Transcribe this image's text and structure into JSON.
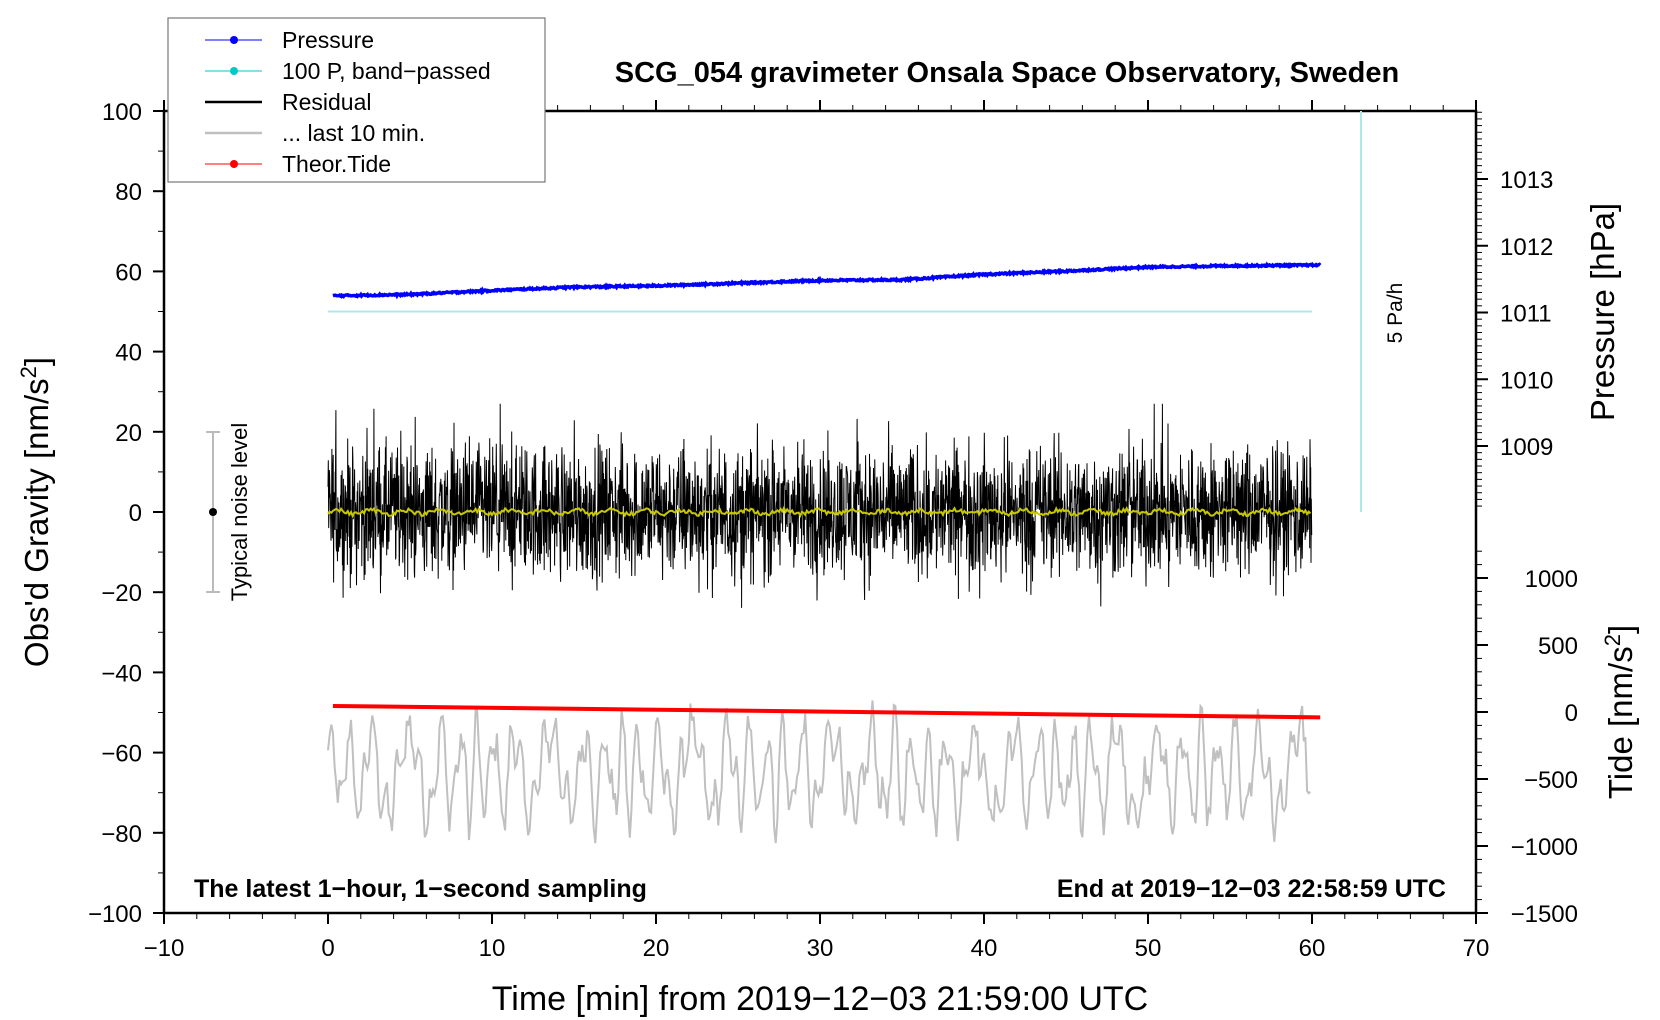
{
  "chart_data": {
    "type": "line",
    "title": "SCG_054 gravimeter Onsala Space Observatory, Sweden",
    "xlabel": "Time [min] from 2019−12−03 21:59:00 UTC",
    "ylabel": "Obs'd Gravity [nm/s",
    "ylabel_sup": "2",
    "ylabel_end": "]",
    "y2label": "Pressure [hPa]",
    "y3label": "Tide [nm/s",
    "y3label_sup": "2",
    "y3label_end": "]",
    "xlim": [
      -10,
      70
    ],
    "ylim": [
      -100,
      100
    ],
    "xticks": [
      "−10",
      "0",
      "10",
      "20",
      "30",
      "40",
      "50",
      "60",
      "70"
    ],
    "xtick_values": [
      -10,
      0,
      10,
      20,
      30,
      40,
      50,
      60,
      70
    ],
    "yticks": [
      "100",
      "80",
      "60",
      "40",
      "20",
      "0",
      "−20",
      "−40",
      "−60",
      "−80",
      "−100"
    ],
    "ytick_values": [
      100,
      80,
      60,
      40,
      20,
      0,
      -20,
      -40,
      -60,
      -80,
      -100
    ],
    "pressure_ticks": [
      "1013",
      "1012",
      "1011",
      "1010",
      "1009"
    ],
    "pressure_tick_values": [
      1013,
      1012,
      1011,
      1010,
      1009
    ],
    "tide_ticks": [
      "1000",
      "500",
      "0",
      "−500",
      "−1000",
      "−1500"
    ],
    "tide_tick_values": [
      1000,
      500,
      0,
      -500,
      -1000,
      -1500
    ],
    "legend": [
      {
        "label": "Pressure",
        "color": "#0000ff",
        "marker": true
      },
      {
        "label": "100 P, band−passed",
        "color": "#00c8c8",
        "marker": true
      },
      {
        "label": "Residual",
        "color": "#000000",
        "marker": false
      },
      {
        "label": "... last 10 min.",
        "color": "#c0c0c0",
        "marker": false
      },
      {
        "label": "Theor.Tide",
        "color": "#ff0000",
        "marker": true
      }
    ],
    "legend_position": "top-left",
    "series": [
      {
        "name": "Pressure",
        "unit": "hPa",
        "color": "#0000ff",
        "x": [
          0.3,
          5,
          10,
          15,
          20,
          25,
          30,
          35,
          40,
          45,
          50,
          55,
          60.5
        ],
        "values": [
          1011.25,
          1011.27,
          1011.33,
          1011.38,
          1011.4,
          1011.44,
          1011.48,
          1011.49,
          1011.57,
          1011.62,
          1011.68,
          1011.7,
          1011.71
        ]
      },
      {
        "name": "100 P, band-passed",
        "unit": "nm/s2",
        "color": "#b0e8e8",
        "x": [
          0,
          60
        ],
        "values": [
          50,
          50
        ]
      },
      {
        "name": "Residual",
        "unit": "nm/s2",
        "color": "#000000",
        "x_range": [
          0,
          60
        ],
        "mean": 0,
        "amplitude": 20
      },
      {
        "name": "Residual smoothed",
        "unit": "nm/s2",
        "color": "#c8c800",
        "x_range": [
          0,
          60
        ],
        "mean": 0,
        "amplitude": 1
      },
      {
        "name": "... last 10 min.",
        "unit": "nm/s2",
        "color": "#c0c0c0",
        "x_range": [
          0,
          60
        ],
        "mean": -65,
        "amplitude": 15
      },
      {
        "name": "Theor.Tide",
        "unit": "nm/s2 (tide axis)",
        "color": "#ff0000",
        "x": [
          0.3,
          60.5
        ],
        "values": [
          45,
          -40
        ]
      }
    ],
    "noise_label": "Typical noise level",
    "noise_range": [
      -20,
      20
    ],
    "rate_label": "5 Pa/h",
    "note_left": "The latest 1−hour, 1−second sampling",
    "note_right": "End at 2019−12−03 22:58:59 UTC"
  }
}
